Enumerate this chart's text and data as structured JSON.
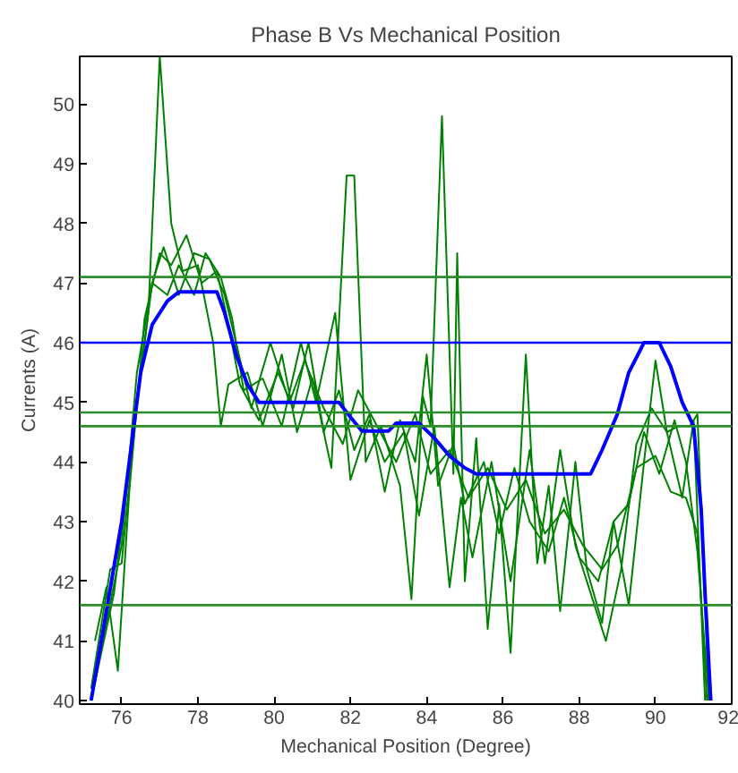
{
  "chart_data": {
    "type": "line",
    "title": "Phase B Vs Mechanical Position",
    "xlabel": "Mechanical Position (Degree)",
    "ylabel": "Currents (A)",
    "xlim": [
      74.9,
      92
    ],
    "ylim": [
      39.94,
      50.8
    ],
    "xticks": [
      76,
      78,
      80,
      82,
      84,
      86,
      88,
      90,
      92
    ],
    "yticks": [
      40,
      41,
      42,
      43,
      44,
      45,
      46,
      47,
      48,
      49,
      50
    ],
    "grid": false,
    "marker": "none",
    "line_style": "solid",
    "ref_lines": [
      {
        "axis": "y",
        "value": 47.1,
        "color": "#2a8c2a"
      },
      {
        "axis": "y",
        "value": 46.0,
        "color": "#0000ff"
      },
      {
        "axis": "y",
        "value": 44.83,
        "color": "#2a8c2a"
      },
      {
        "axis": "y",
        "value": 44.6,
        "color": "#2a8c2a"
      },
      {
        "axis": "y",
        "value": 41.6,
        "color": "#2a8c2a"
      }
    ],
    "series": [
      {
        "color": "#008000",
        "x": [
          75.2,
          75.8,
          76.3,
          76.7,
          77.0,
          77.3,
          77.6,
          78.0,
          78.4,
          78.6,
          78.8,
          79.3,
          79.7,
          80.2,
          80.6,
          81.0,
          81.5,
          81.9,
          82.1,
          82.4,
          82.8,
          83.3,
          83.6,
          83.9,
          84.1,
          84.4,
          84.7,
          84.8,
          85.0,
          85.3,
          85.6,
          85.9,
          86.2,
          86.6,
          86.9,
          87.2,
          87.5,
          87.9,
          88.2,
          88.6,
          88.9,
          89.3,
          89.7,
          90.0,
          90.3,
          90.7,
          91.0,
          91.3
        ],
        "values": [
          40.0,
          41.8,
          44.5,
          46.5,
          50.8,
          48.0,
          47.2,
          47.3,
          46.0,
          44.6,
          45.3,
          45.5,
          44.6,
          45.8,
          44.5,
          45.4,
          43.9,
          48.8,
          48.8,
          44.0,
          44.6,
          43.6,
          41.7,
          45.1,
          44.6,
          49.8,
          43.8,
          47.5,
          42.0,
          44.4,
          41.2,
          43.3,
          40.8,
          45.8,
          42.3,
          43.6,
          41.5,
          44.0,
          42.2,
          41.3,
          43.0,
          41.6,
          44.0,
          45.7,
          44.5,
          43.4,
          44.7,
          40.0
        ]
      },
      {
        "color": "#008000",
        "x": [
          75.3,
          75.6,
          75.9,
          76.2,
          76.6,
          77.0,
          77.3,
          77.7,
          78.1,
          78.5,
          78.8,
          79.1,
          79.6,
          80.1,
          80.5,
          80.9,
          81.3,
          81.7,
          82.1,
          82.5,
          82.9,
          83.3,
          83.7,
          84.0,
          84.3,
          84.7,
          85.0,
          85.5,
          85.9,
          86.3,
          86.7,
          87.2,
          87.6,
          88.0,
          88.5,
          88.9,
          89.3,
          89.7,
          90.1,
          90.5,
          90.8,
          91.1,
          91.4
        ],
        "values": [
          41.0,
          41.9,
          40.5,
          43.5,
          46.4,
          47.5,
          47.3,
          47.8,
          47.0,
          47.2,
          46.3,
          45.3,
          44.7,
          45.5,
          44.9,
          46.0,
          44.5,
          45.2,
          44.2,
          44.8,
          43.5,
          44.7,
          44.0,
          45.8,
          43.6,
          44.3,
          43.3,
          44.0,
          42.8,
          43.9,
          43.0,
          42.5,
          43.4,
          42.4,
          42.0,
          43.0,
          43.3,
          44.5,
          43.8,
          44.7,
          44.0,
          42.5,
          40.0
        ]
      },
      {
        "color": "#008000",
        "x": [
          75.2,
          75.7,
          76.0,
          76.4,
          76.8,
          77.1,
          77.5,
          77.9,
          78.3,
          78.7,
          79.0,
          79.4,
          79.9,
          80.4,
          80.8,
          81.3,
          81.8,
          82.2,
          82.7,
          83.2,
          83.7,
          84.1,
          84.6,
          85.1,
          85.6,
          86.1,
          86.6,
          87.1,
          87.6,
          88.1,
          88.6,
          89.0,
          89.5,
          90.0,
          90.4,
          90.8,
          91.1,
          91.35
        ],
        "values": [
          40.2,
          42.2,
          42.3,
          45.0,
          47.0,
          47.6,
          46.8,
          47.5,
          47.4,
          46.8,
          46.0,
          44.9,
          46.0,
          45.0,
          45.7,
          44.9,
          44.3,
          45.2,
          44.6,
          44.0,
          44.8,
          43.8,
          44.2,
          43.4,
          43.9,
          43.2,
          43.7,
          42.8,
          43.2,
          42.6,
          42.2,
          42.6,
          43.9,
          44.1,
          43.5,
          43.4,
          42.8,
          40.0
        ]
      },
      {
        "color": "#008000",
        "x": [
          75.3,
          75.6,
          76.0,
          76.4,
          76.8,
          77.2,
          77.5,
          77.9,
          78.2,
          78.6,
          78.9,
          79.2,
          79.7,
          80.2,
          80.7,
          81.1,
          81.6,
          82.0,
          82.5,
          82.9,
          83.4,
          83.8,
          84.2,
          84.6,
          84.9,
          85.2,
          85.7,
          86.2,
          86.7,
          87.1,
          87.5,
          87.9,
          88.3,
          88.7,
          89.1,
          89.5,
          89.9,
          90.3,
          90.6,
          90.9,
          91.1,
          91.4
        ],
        "values": [
          40.3,
          41.3,
          42.6,
          45.5,
          47.0,
          46.8,
          47.3,
          46.8,
          47.5,
          47.1,
          46.4,
          45.2,
          45.4,
          44.6,
          46.0,
          45.0,
          46.5,
          43.7,
          44.7,
          44.0,
          44.5,
          43.1,
          44.6,
          41.9,
          43.4,
          42.4,
          44.0,
          42.0,
          44.2,
          42.3,
          44.2,
          42.6,
          41.8,
          41.0,
          42.2,
          44.3,
          44.9,
          44.5,
          44.6,
          44.6,
          44.8,
          40.0
        ]
      },
      {
        "color": "#0000ff",
        "x": [
          75.2,
          75.6,
          76.0,
          76.3,
          76.5,
          76.8,
          77.2,
          77.5,
          78.5,
          78.7,
          79.0,
          79.3,
          79.6,
          81.7,
          82.0,
          82.3,
          83.0,
          83.2,
          83.8,
          84.2,
          84.6,
          85.0,
          85.3,
          88.3,
          88.6,
          89.0,
          89.3,
          89.7,
          90.1,
          90.4,
          90.7,
          91.0,
          91.2,
          91.3,
          91.45
        ],
        "values": [
          40.0,
          41.5,
          43.0,
          44.5,
          45.5,
          46.3,
          46.7,
          46.85,
          46.85,
          46.5,
          45.8,
          45.3,
          45.0,
          45.0,
          44.75,
          44.52,
          44.52,
          44.65,
          44.65,
          44.4,
          44.1,
          43.9,
          43.8,
          43.8,
          44.2,
          44.8,
          45.5,
          46.0,
          46.0,
          45.6,
          45.0,
          44.6,
          43.2,
          41.8,
          40.0
        ]
      }
    ]
  }
}
